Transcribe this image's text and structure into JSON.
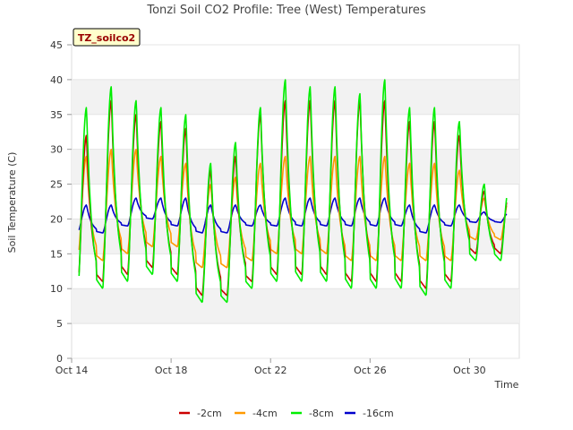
{
  "chart_data": {
    "type": "line",
    "title": "Tonzi Soil CO2 Profile: Tree (West) Temperatures",
    "xlabel": "Time",
    "ylabel": "Soil Temperature (C)",
    "station_tag": "TZ_soilco2",
    "x_range_days": [
      0,
      18
    ],
    "x_unit": "days since Oct 14",
    "ylim": [
      0,
      45
    ],
    "yticks": [
      0,
      5,
      10,
      15,
      20,
      25,
      30,
      35,
      40,
      45
    ],
    "xticks": [
      {
        "day": 0,
        "label": "Oct 14"
      },
      {
        "day": 4,
        "label": "Oct 18"
      },
      {
        "day": 8,
        "label": "Oct 22"
      },
      {
        "day": 12,
        "label": "Oct 26"
      },
      {
        "day": 16,
        "label": "Oct 30"
      }
    ],
    "x_start_day": 0.3,
    "x_end_day": 17.5,
    "daily_peak_hour_fraction": 0.6,
    "series": [
      {
        "name": "-2cm",
        "color": "#cc0000",
        "daily_max": [
          32,
          37,
          35,
          34,
          33,
          27,
          29,
          35,
          37,
          37,
          37,
          37,
          37,
          34,
          34,
          32,
          24
        ],
        "daily_min": [
          10,
          11,
          12,
          13,
          12,
          9,
          9,
          11,
          12,
          12,
          12,
          11,
          11,
          11,
          10,
          11,
          15
        ]
      },
      {
        "name": "-4cm",
        "color": "#ff9900",
        "daily_max": [
          29,
          30,
          30,
          29,
          28,
          25,
          26,
          28,
          29,
          29,
          29,
          29,
          29,
          28,
          28,
          27,
          23
        ],
        "daily_min": [
          14,
          14,
          15,
          16,
          16,
          13,
          13,
          14,
          15,
          15,
          15,
          14,
          14,
          14,
          14,
          14,
          17
        ]
      },
      {
        "name": "-8cm",
        "color": "#00ee00",
        "daily_max": [
          36,
          39,
          37,
          36,
          35,
          28,
          31,
          36,
          40,
          39,
          39,
          38,
          40,
          36,
          36,
          34,
          25
        ],
        "daily_min": [
          9,
          10,
          11,
          12,
          11,
          8,
          8,
          10,
          11,
          11,
          11,
          10,
          10,
          10,
          9,
          10,
          14
        ]
      },
      {
        "name": "-16cm",
        "color": "#0000cc",
        "daily_max": [
          22,
          22,
          23,
          23,
          23,
          22,
          22,
          22,
          23,
          23,
          23,
          23,
          23,
          22,
          22,
          22,
          21
        ],
        "daily_min": [
          18,
          18,
          19,
          20,
          19,
          18,
          18,
          19,
          19,
          19,
          19,
          19,
          19,
          19,
          18,
          19,
          19.5
        ]
      }
    ]
  }
}
